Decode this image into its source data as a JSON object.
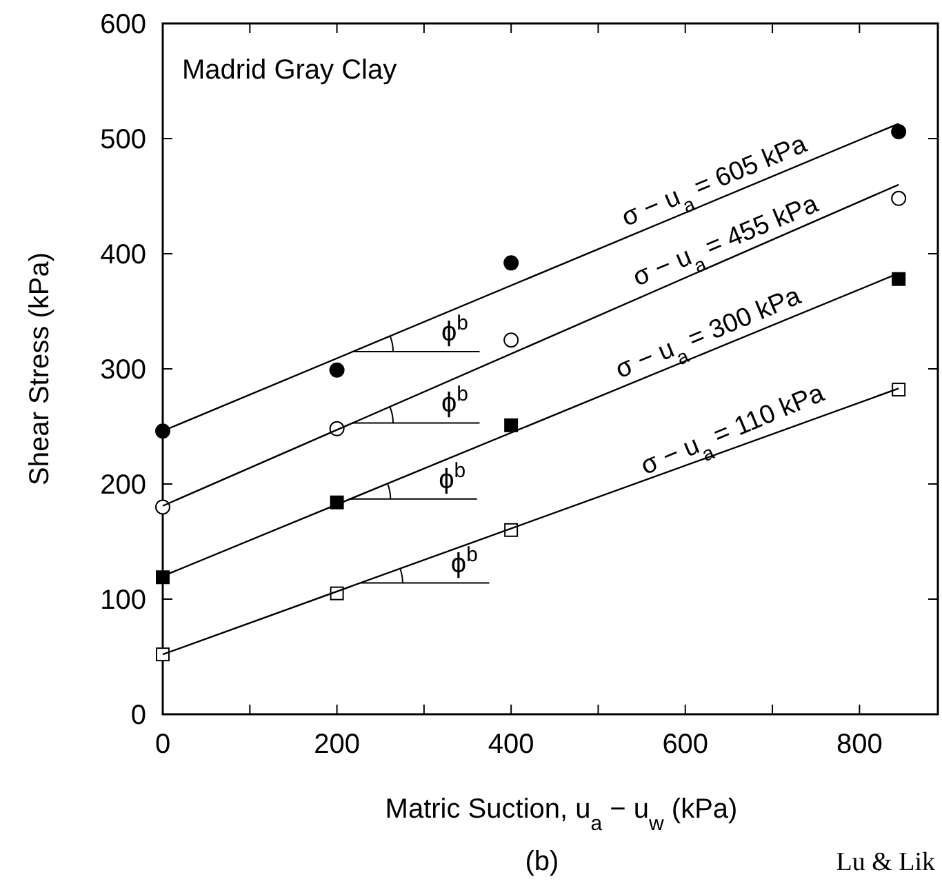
{
  "chart_data": {
    "type": "scatter",
    "title": "Madrid Gray Clay",
    "xlabel": "Matric Suction,  u$_{a}$ − u$_{w}$  (kPa)",
    "ylabel": "Shear Stress (kPa)",
    "xlim": [
      0,
      890
    ],
    "ylim": [
      0,
      600
    ],
    "xticks": [
      0,
      {
        "value": 100,
        "label": null
      },
      200,
      {
        "value": 300,
        "label": null
      },
      400,
      {
        "value": 500,
        "label": null
      },
      600,
      {
        "value": 700,
        "label": null
      },
      800
    ],
    "yticks": [
      0,
      100,
      200,
      300,
      400,
      500,
      600
    ],
    "series": [
      {
        "marker": "circle",
        "color": "#000000",
        "x": [
          0,
          200,
          400,
          845
        ],
        "values": [
          246,
          299,
          392,
          506
        ]
      },
      {
        "marker": "circle",
        "color": "#ffffff",
        "x": [
          0,
          200,
          400,
          845
        ],
        "values": [
          180,
          248,
          325,
          448
        ]
      },
      {
        "marker": "square",
        "color": "#000000",
        "x": [
          0,
          200,
          400,
          845
        ],
        "values": [
          119,
          184,
          251,
          378
        ]
      },
      {
        "marker": "square",
        "color": "#ffffff",
        "x": [
          0,
          200,
          400,
          845
        ],
        "values": [
          52,
          105,
          160,
          282
        ]
      },
      {
        "type": "line",
        "color": "#000000",
        "x": [
          0,
          845
        ],
        "values": [
          246,
          513
        ]
      },
      {
        "type": "line",
        "color": "#000000",
        "x": [
          0,
          845
        ],
        "values": [
          181,
          460
        ]
      },
      {
        "type": "line",
        "color": "#000000",
        "x": [
          0,
          845
        ],
        "values": [
          120,
          383
        ]
      },
      {
        "type": "line",
        "color": "#000000",
        "x": [
          0,
          845
        ],
        "values": [
          52,
          283
        ]
      }
    ],
    "annotations": [
      {
        "text": "σ − u$_{a}$ = 605 kPa",
        "x": 641,
        "y": 449
      },
      {
        "text": "σ − u$_{a}$ = 455 kPa",
        "x": 654,
        "y": 397
      },
      {
        "text": "σ − u$_{a}$ = 300 kPa",
        "x": 634,
        "y": 317
      },
      {
        "text": "σ − u$_{a}$ = 110 kPa",
        "x": 662,
        "y": 233
      },
      {
        "text": "ϕ$^{b}$",
        "x": 217,
        "y": 315
      },
      {
        "text": "ϕ$^{b}$",
        "x": 217,
        "y": 253
      },
      {
        "text": "ϕ$^{b}$",
        "x": 214,
        "y": 187
      },
      {
        "text": "ϕ$^{b}$",
        "x": 228,
        "y": 114
      },
      "(b)",
      "Lu & Lik"
    ]
  }
}
